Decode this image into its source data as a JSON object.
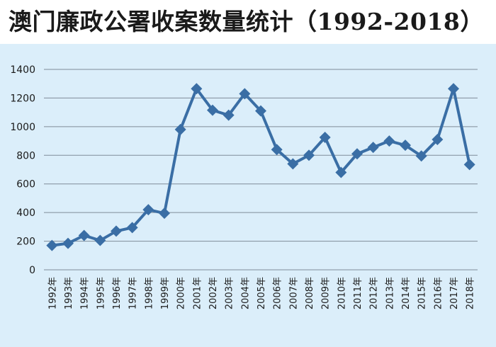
{
  "chart_data": {
    "type": "line",
    "title": "澳门廉政公署收案数量统计（1992-2018）",
    "xlabel": "",
    "ylabel": "",
    "categories": [
      "1992年",
      "1993年",
      "1994年",
      "1995年",
      "1996年",
      "1997年",
      "1998年",
      "1999年",
      "2000年",
      "2001年",
      "2002年",
      "2003年",
      "2004年",
      "2005年",
      "2006年",
      "2007年",
      "2008年",
      "2009年",
      "2010年",
      "2011年",
      "2012年",
      "2013年",
      "2014年",
      "2015年",
      "2016年",
      "2017年",
      "2018年"
    ],
    "series": [
      {
        "values": [
          170,
          185,
          240,
          205,
          270,
          295,
          420,
          395,
          980,
          1265,
          1115,
          1080,
          1230,
          1110,
          840,
          740,
          800,
          925,
          680,
          810,
          855,
          900,
          870,
          795,
          910,
          1265,
          735
        ]
      }
    ],
    "ylim": [
      0,
      1400
    ],
    "yticks": [
      "0",
      "200",
      "400",
      "600",
      "800",
      "1000",
      "1200",
      "1400"
    ],
    "grid": true,
    "legend": "none",
    "colors": {
      "line": "#3a6ea5",
      "marker": "#3a6ea5",
      "grid": "#7f8c99",
      "background": "#dbeefa"
    }
  }
}
